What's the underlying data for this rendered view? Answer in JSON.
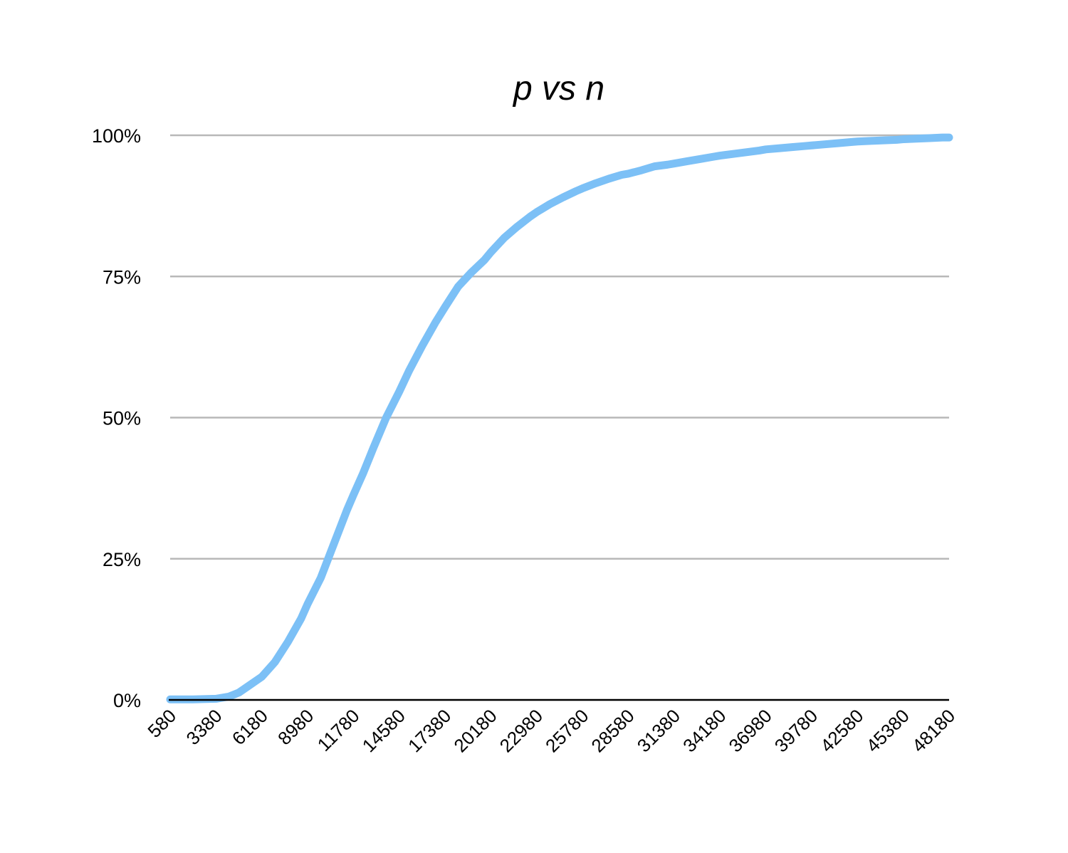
{
  "chart_data": {
    "type": "line",
    "title": "p vs n",
    "xlabel": "",
    "ylabel": "",
    "ylim": [
      0,
      100
    ],
    "y_ticks": [
      "0%",
      "25%",
      "50%",
      "75%",
      "100%"
    ],
    "y_tick_values": [
      0,
      25,
      50,
      75,
      100
    ],
    "xlim": [
      580,
      48180
    ],
    "x_tick_labels": [
      "580",
      "3380",
      "6180",
      "8980",
      "11780",
      "14580",
      "17380",
      "20180",
      "22980",
      "25780",
      "28580",
      "31380",
      "34180",
      "36980",
      "39780",
      "42580",
      "45380",
      "48180"
    ],
    "x_tick_values": [
      580,
      3380,
      6180,
      8980,
      11780,
      14580,
      17380,
      20180,
      22980,
      25780,
      28580,
      31380,
      34180,
      36980,
      39780,
      42580,
      45380,
      48180
    ],
    "grid": true,
    "legend": "none",
    "colors": {
      "line": "#7cc0f6",
      "grid": "#b8b8b8",
      "axis": "#000000"
    },
    "series": [
      {
        "x": [
          580,
          1980,
          3380,
          4180,
          4780,
          5380,
          6180,
          6980,
          7780,
          8580,
          8980,
          9780,
          10580,
          11380,
          11780,
          12380,
          12980,
          13780,
          14580,
          15180,
          15980,
          16780,
          17380,
          18180,
          18980,
          19780,
          20180,
          20980,
          21780,
          22580,
          22980,
          23780,
          24580,
          25380,
          25780,
          26580,
          27380,
          28180,
          28580,
          29380,
          30180,
          30980,
          31380,
          32180,
          32980,
          33780,
          34180,
          34980,
          35780,
          36580,
          36980,
          37780,
          38580,
          39380,
          39780,
          40580,
          41380,
          42180,
          42580,
          43380,
          44180,
          44980,
          45380,
          46180,
          46980,
          47780,
          48180
        ],
        "values": [
          0.1,
          0.1,
          0.2,
          0.6,
          1.3,
          2.5,
          4.1,
          6.7,
          10.3,
          14.4,
          17.0,
          21.6,
          27.6,
          33.6,
          36.3,
          40.2,
          44.5,
          50.0,
          54.6,
          58.3,
          62.7,
          66.8,
          69.6,
          73.2,
          75.7,
          77.9,
          79.3,
          81.8,
          83.8,
          85.6,
          86.4,
          87.8,
          89.0,
          90.1,
          90.6,
          91.5,
          92.3,
          93.0,
          93.2,
          93.8,
          94.5,
          94.8,
          95.0,
          95.4,
          95.8,
          96.2,
          96.4,
          96.7,
          97.0,
          97.3,
          97.5,
          97.7,
          97.9,
          98.1,
          98.2,
          98.4,
          98.6,
          98.8,
          98.9,
          99.0,
          99.1,
          99.2,
          99.3,
          99.4,
          99.5,
          99.6,
          99.6
        ]
      }
    ]
  }
}
